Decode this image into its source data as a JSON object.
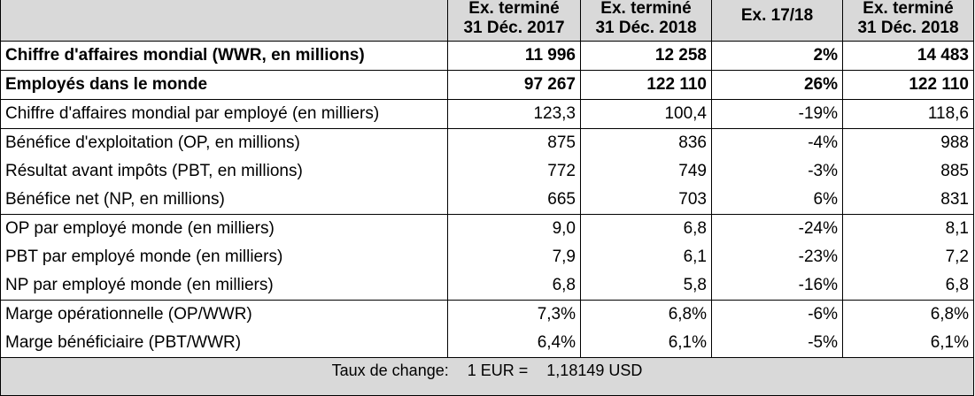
{
  "header": {
    "col1_line1": "Ex. terminé",
    "col1_line2": "31 Déc. 2017",
    "col2_line1": "Ex. terminé",
    "col2_line2": "31 Déc. 2018",
    "col3": "Ex. 17/18",
    "col4_line1": "Ex. terminé",
    "col4_line2": "31 Déc. 2018"
  },
  "rows": [
    {
      "label": "Chiffre d'affaires mondial (WWR, en millions)",
      "v1": "11 996",
      "v2": "12 258",
      "v3": "2%",
      "v4": "14 483"
    },
    {
      "label": "Employés dans le monde",
      "v1": "97 267",
      "v2": "122 110",
      "v3": "26%",
      "v4": "122 110"
    },
    {
      "label": "Chiffre d'affaires mondial par employé (en milliers)",
      "v1": "123,3",
      "v2": "100,4",
      "v3": "-19%",
      "v4": "118,6"
    },
    {
      "label": "Bénéfice d'exploitation (OP, en millions)",
      "v1": "875",
      "v2": "836",
      "v3": "-4%",
      "v4": "988"
    },
    {
      "label": "Résultat avant impôts (PBT, en millions)",
      "v1": "772",
      "v2": "749",
      "v3": "-3%",
      "v4": "885"
    },
    {
      "label": "Bénéfice net (NP, en millions)",
      "v1": "665",
      "v2": "703",
      "v3": "6%",
      "v4": "831"
    },
    {
      "label": "OP par employé monde (en milliers)",
      "v1": "9,0",
      "v2": "6,8",
      "v3": "-24%",
      "v4": "8,1"
    },
    {
      "label": "PBT par employé monde (en milliers)",
      "v1": "7,9",
      "v2": "6,1",
      "v3": "-23%",
      "v4": "7,2"
    },
    {
      "label": "NP par employé monde (en milliers)",
      "v1": "6,8",
      "v2": "5,8",
      "v3": "-16%",
      "v4": "6,8"
    },
    {
      "label": "Marge opérationnelle (OP/WWR)",
      "v1": "7,3%",
      "v2": "6,8%",
      "v3": "-6%",
      "v4": "6,8%"
    },
    {
      "label": "Marge bénéficiaire (PBT/WWR)",
      "v1": "6,4%",
      "v2": "6,1%",
      "v3": "-5%",
      "v4": "6,1%"
    }
  ],
  "footer": {
    "label": "Taux de change:",
    "rate": "1 EUR =",
    "value": "1,18149 USD"
  }
}
